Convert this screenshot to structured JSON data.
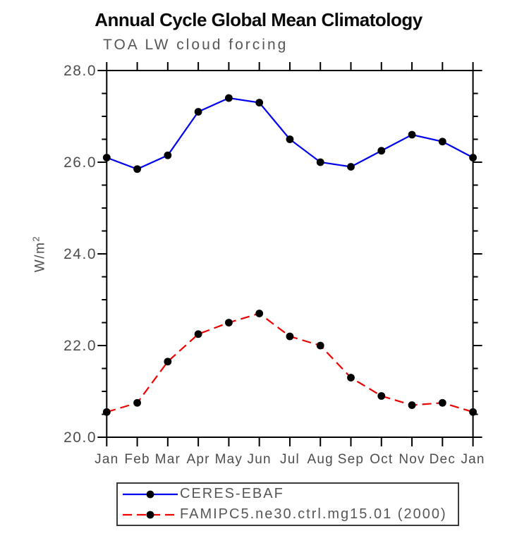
{
  "title": "Annual Cycle Global Mean Climatology",
  "subtitle": "TOA LW cloud forcing",
  "ylabel_base": "W/m",
  "ylabel_sup": "2",
  "chart_data": {
    "type": "line",
    "title": "Annual Cycle Global Mean Climatology",
    "subtitle": "TOA LW cloud forcing",
    "ylabel": "W/m²",
    "xlabel": "",
    "categories": [
      "Jan",
      "Feb",
      "Mar",
      "Apr",
      "May",
      "Jun",
      "Jul",
      "Aug",
      "Sep",
      "Oct",
      "Nov",
      "Dec",
      "Jan"
    ],
    "series": [
      {
        "name": "CERES-EBAF",
        "color": "#0000ee",
        "line_style": "solid",
        "values": [
          26.1,
          25.85,
          26.15,
          27.1,
          27.4,
          27.3,
          26.5,
          26.0,
          25.9,
          26.25,
          26.6,
          26.45,
          26.1
        ]
      },
      {
        "name": "FAMIPC5.ne30.ctrl.mg15.01 (2000)",
        "color": "#ee0000",
        "line_style": "dashed",
        "values": [
          20.55,
          20.75,
          21.65,
          22.25,
          22.5,
          22.7,
          22.2,
          22.0,
          21.3,
          20.9,
          20.7,
          20.75,
          20.55
        ]
      }
    ],
    "marker": "filled-circle",
    "marker_color": "#000000",
    "ylim": [
      20.0,
      28.0
    ],
    "yticks": [
      20.0,
      22.0,
      24.0,
      26.0,
      28.0
    ],
    "ytick_labels": [
      "20.0",
      "22.0",
      "24.0",
      "26.0",
      "28.0"
    ],
    "y_minor_step": 0.5,
    "grid": false,
    "legend_position": "bottom",
    "axis_color": "#000000",
    "tick_label_color": "#4d4d4d"
  }
}
